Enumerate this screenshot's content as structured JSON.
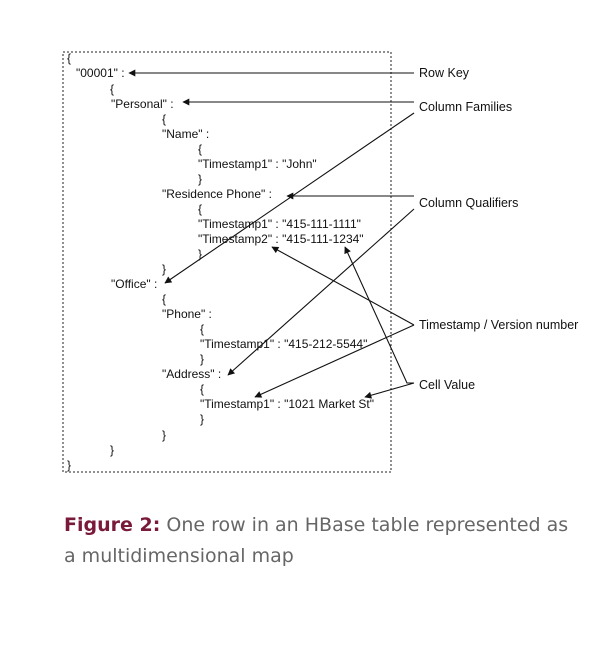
{
  "code": {
    "open_brace": "{",
    "row_key": "\"00001\" :",
    "brace_a": "{",
    "personal": "\"Personal\" :",
    "brace_b": "{",
    "name": "\"Name\" :",
    "brace_c": "{",
    "ts_john": "\"Timestamp1\" : \"John\"",
    "close_c": "}",
    "residence": "\"Residence Phone\" :",
    "brace_d": "{",
    "ts_res1": "\"Timestamp1\" : \"415-111-1111\"",
    "ts_res2": "\"Timestamp2\" : \"415-111-1234\"",
    "close_d": "}",
    "close_b": "}",
    "office": "\"Office\" :",
    "brace_e": "{",
    "phone": "\"Phone\" :",
    "brace_f": "{",
    "ts_phone": "\"Timestamp1\" : \"415-212-5544\"",
    "close_f": "}",
    "address": "\"Address\" :",
    "brace_g": "{",
    "ts_address": "\"Timestamp1\" : \"1021 Market St\"",
    "close_g": "}",
    "close_e": "}",
    "close_a": "}",
    "close_root": "}"
  },
  "labels": {
    "row_key": "Row Key",
    "column_families": "Column Families",
    "column_qualifiers": "Column Qualifiers",
    "timestamp": "Timestamp / Version number",
    "cell_value": "Cell Value"
  },
  "caption": {
    "figure": "Figure 2:",
    "text": "One row in an HBase table represented as a multidimensional map"
  }
}
